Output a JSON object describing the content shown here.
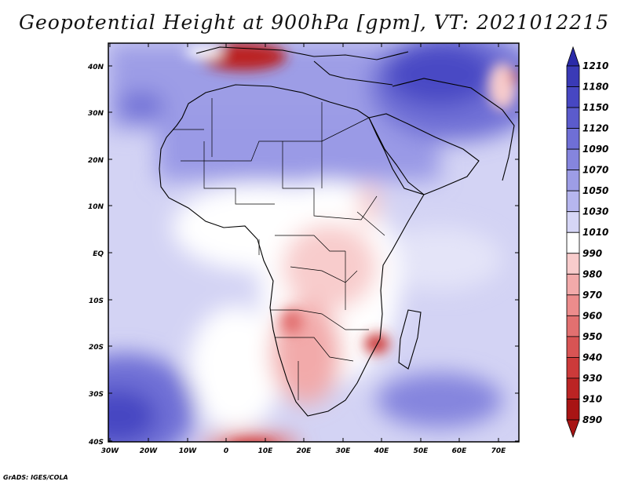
{
  "title": "Geopotential Height at 900hPa [gpm], VT: 2021012215",
  "credit": "GrADS: IGES/COLA",
  "lat_labels": [
    "40N",
    "30N",
    "20N",
    "10N",
    "EQ",
    "10S",
    "20S",
    "30S",
    "40S"
  ],
  "lon_labels": [
    "30W",
    "20W",
    "10W",
    "0",
    "10E",
    "20E",
    "30E",
    "40E",
    "50E",
    "60E",
    "70E"
  ],
  "colorbar": {
    "labels": [
      "1210",
      "1180",
      "1150",
      "1120",
      "1090",
      "1070",
      "1050",
      "1030",
      "1010",
      "990",
      "980",
      "970",
      "960",
      "950",
      "940",
      "930",
      "910",
      "890"
    ],
    "colors": [
      "#2a2aa8",
      "#3a3ab6",
      "#4747c2",
      "#5b5bcc",
      "#6f6fd6",
      "#8585de",
      "#9d9de6",
      "#b6b6ee",
      "#d6d6f6",
      "#ffffff",
      "#f8cccc",
      "#f2aaaa",
      "#ec8c8c",
      "#e27070",
      "#d85454",
      "#cc3a3a",
      "#bb2424",
      "#a81414"
    ]
  }
}
